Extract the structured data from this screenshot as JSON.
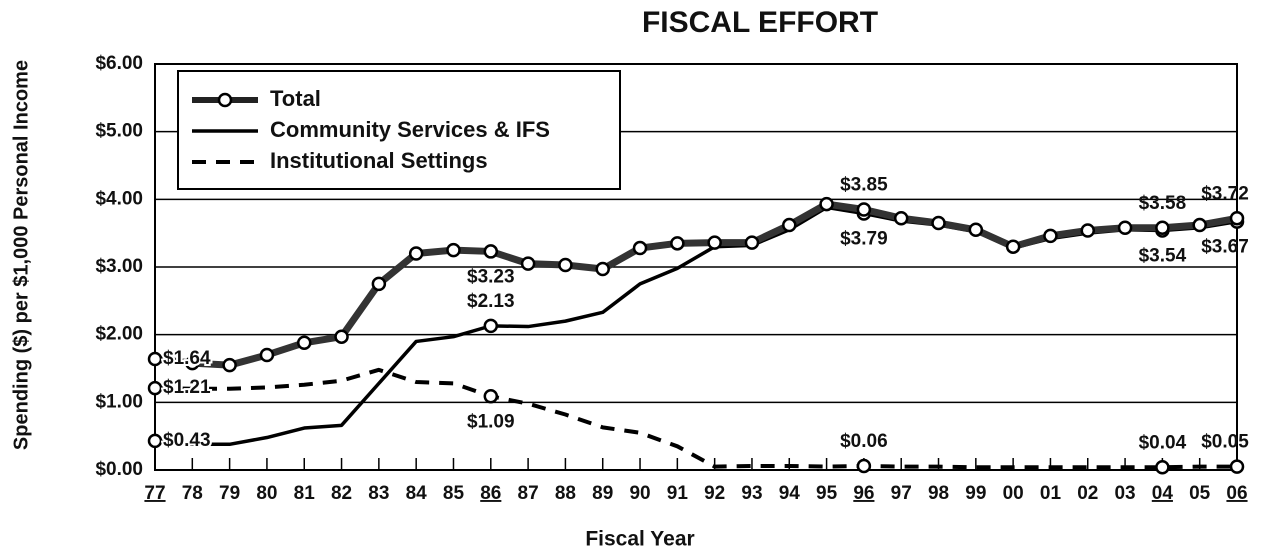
{
  "chart_data": {
    "type": "line",
    "title": "FISCAL EFFORT",
    "x_label": "Fiscal Year",
    "y_label": "Spending ($) per $1,000 Personal Income",
    "categories": [
      "77",
      "78",
      "79",
      "80",
      "81",
      "82",
      "83",
      "84",
      "85",
      "86",
      "87",
      "88",
      "89",
      "90",
      "91",
      "92",
      "93",
      "94",
      "95",
      "96",
      "97",
      "98",
      "99",
      "00",
      "01",
      "02",
      "03",
      "04",
      "05",
      "06"
    ],
    "series": [
      {
        "name": "Total",
        "color": "#222222",
        "style": "solid-marker",
        "values": [
          1.64,
          1.58,
          1.55,
          1.7,
          1.88,
          1.97,
          2.75,
          3.2,
          3.25,
          3.23,
          3.05,
          3.03,
          2.97,
          3.28,
          3.35,
          3.36,
          3.36,
          3.62,
          3.93,
          3.85,
          3.72,
          3.65,
          3.55,
          3.3,
          3.46,
          3.54,
          3.58,
          3.58,
          3.62,
          3.72
        ],
        "value_labels": [
          "$1.64",
          null,
          null,
          null,
          null,
          null,
          null,
          null,
          null,
          "$3.23",
          null,
          null,
          null,
          null,
          null,
          null,
          null,
          null,
          null,
          "$3.85",
          null,
          null,
          null,
          null,
          null,
          null,
          null,
          "$3.58",
          null,
          "$3.72"
        ]
      },
      {
        "name": "Community Services & IFS",
        "color": "#000000",
        "style": "solid",
        "values": [
          0.43,
          0.38,
          0.38,
          0.48,
          0.62,
          0.66,
          1.28,
          1.9,
          1.97,
          2.13,
          2.12,
          2.2,
          2.33,
          2.75,
          2.98,
          3.3,
          3.32,
          3.55,
          3.88,
          3.79,
          3.68,
          3.62,
          3.52,
          3.28,
          3.42,
          3.5,
          3.55,
          3.54,
          3.58,
          3.67
        ],
        "value_labels": [
          "$0.43",
          null,
          null,
          null,
          null,
          null,
          null,
          null,
          null,
          "$2.13",
          null,
          null,
          null,
          null,
          null,
          null,
          null,
          null,
          null,
          "$3.79",
          null,
          null,
          null,
          null,
          null,
          null,
          null,
          "$3.54",
          null,
          "$3.67"
        ]
      },
      {
        "name": "Institutional Settings",
        "color": "#000000",
        "style": "dashed",
        "values": [
          1.21,
          1.2,
          1.2,
          1.22,
          1.26,
          1.32,
          1.48,
          1.3,
          1.28,
          1.09,
          0.98,
          0.82,
          0.63,
          0.55,
          0.35,
          0.05,
          0.06,
          0.06,
          0.05,
          0.06,
          0.05,
          0.05,
          0.04,
          0.04,
          0.04,
          0.04,
          0.04,
          0.04,
          0.05,
          0.05
        ],
        "value_labels": [
          "$1.21",
          null,
          null,
          null,
          null,
          null,
          null,
          null,
          null,
          "$1.09",
          null,
          null,
          null,
          null,
          null,
          null,
          null,
          null,
          null,
          "$0.06",
          null,
          null,
          null,
          null,
          null,
          null,
          null,
          "$0.04",
          null,
          "$0.05"
        ]
      }
    ],
    "ylim": [
      0,
      6
    ],
    "yticks": [
      {
        "value": 0,
        "label": "$0.00"
      },
      {
        "value": 1,
        "label": "$1.00"
      },
      {
        "value": 2,
        "label": "$2.00"
      },
      {
        "value": 3,
        "label": "$3.00"
      },
      {
        "value": 4,
        "label": "$4.00"
      },
      {
        "value": 5,
        "label": "$5.00"
      },
      {
        "value": 6,
        "label": "$6.00"
      }
    ],
    "grid": true,
    "legend": "upper left"
  }
}
